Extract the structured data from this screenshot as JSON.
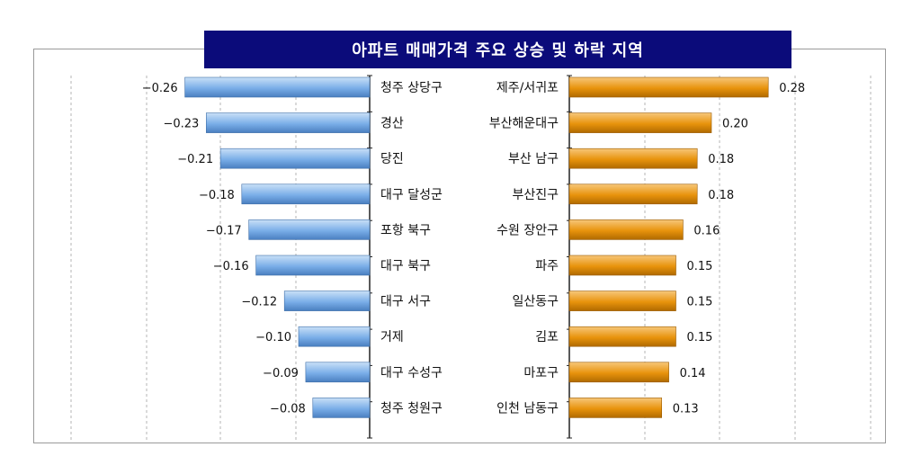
{
  "chart_data": {
    "type": "bar",
    "title": "아파트 매매가격 주요 상승 및 하락 지역",
    "decline": {
      "categories": [
        "청주 상당구",
        "경산",
        "당진",
        "대구 달성군",
        "포항 북구",
        "대구 북구",
        "대구 서구",
        "거제",
        "대구 수성구",
        "청주 청원구"
      ],
      "values": [
        -0.26,
        -0.23,
        -0.21,
        -0.18,
        -0.17,
        -0.16,
        -0.12,
        -0.1,
        -0.09,
        -0.08
      ],
      "labels": [
        "−0.26",
        "−0.23",
        "−0.21",
        "−0.18",
        "−0.17",
        "−0.16",
        "−0.12",
        "−0.10",
        "−0.09",
        "−0.08"
      ],
      "color": "#7aaee8"
    },
    "rise": {
      "categories": [
        "제주/서귀포",
        "부산해운대구",
        "부산 남구",
        "부산진구",
        "수원 장안구",
        "파주",
        "일산동구",
        "김포",
        "마포구",
        "인천 남동구"
      ],
      "values": [
        0.28,
        0.2,
        0.18,
        0.18,
        0.16,
        0.15,
        0.15,
        0.15,
        0.14,
        0.13
      ],
      "labels": [
        "0.28",
        "0.20",
        "0.18",
        "0.18",
        "0.16",
        "0.15",
        "0.15",
        "0.15",
        "0.14",
        "0.13"
      ],
      "color": "#e8930c"
    },
    "grid": "vertical-dashed",
    "xlim": [
      -0.3,
      0.3
    ]
  }
}
